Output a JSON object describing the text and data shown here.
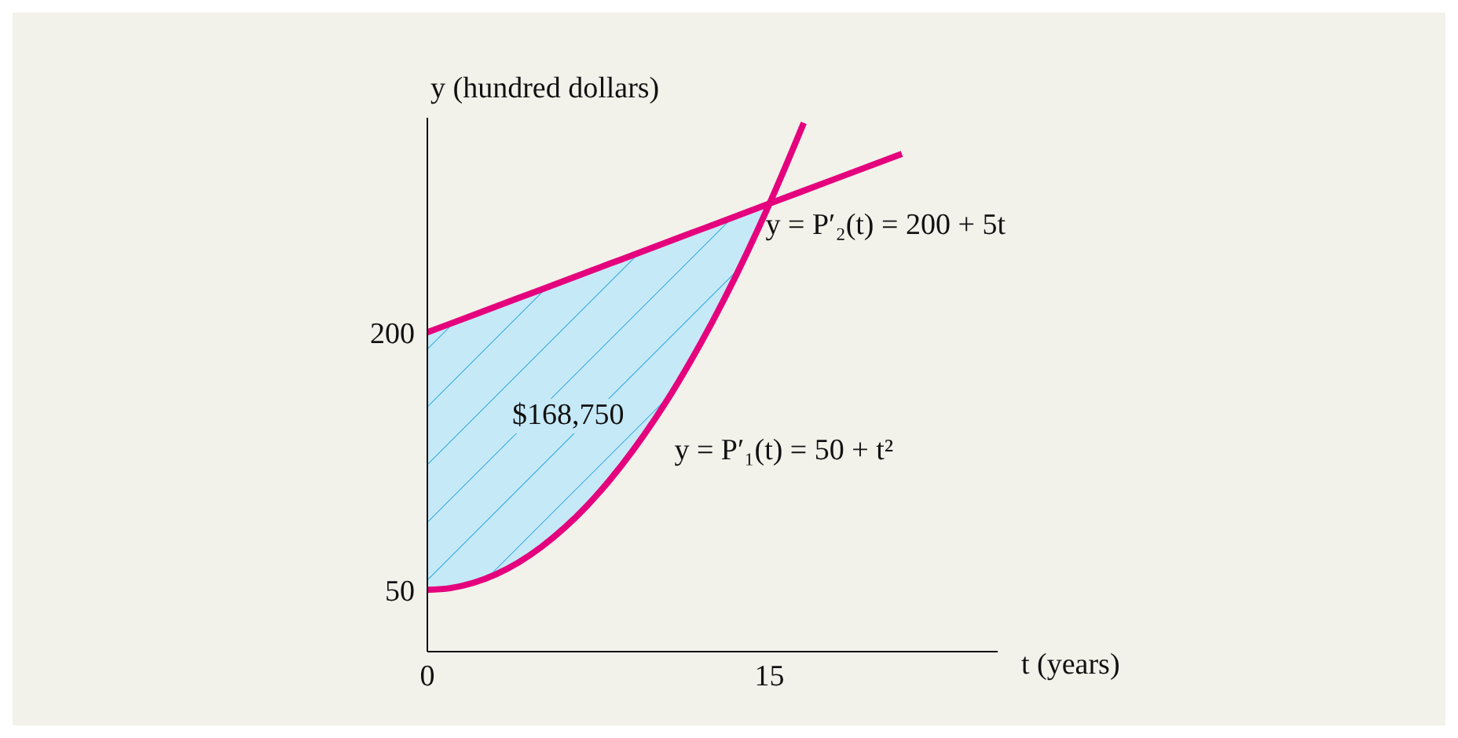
{
  "chart_data": {
    "type": "line",
    "xlabel": "t (years)",
    "ylabel": "y (hundred dollars)",
    "xlim": [
      0,
      25
    ],
    "ylim": [
      14,
      325
    ],
    "xticks": [
      0,
      15
    ],
    "yticks": [
      50,
      200
    ],
    "grid": false,
    "legend": false,
    "marker": "none",
    "line_style": "solid",
    "annotations": [
      "$168,750"
    ],
    "series": [
      {
        "name": "y = P′₂(t) = 200 + 5t",
        "color": "#e5007d",
        "x": [
          0,
          1,
          2,
          3,
          4,
          5,
          6,
          7,
          8,
          9,
          10,
          11,
          12,
          13,
          14,
          15,
          20.8
        ],
        "values": [
          200,
          205,
          210,
          215,
          220,
          225,
          230,
          235,
          240,
          245,
          250,
          255,
          260,
          265,
          270,
          275,
          304
        ],
        "lower": [
          50,
          51,
          54,
          59,
          66,
          75,
          86,
          99,
          114,
          131,
          150,
          171,
          194,
          219,
          246,
          275,
          null
        ],
        "upper": [
          200,
          205,
          210,
          215,
          220,
          225,
          230,
          235,
          240,
          245,
          250,
          255,
          260,
          265,
          270,
          275,
          null
        ]
      },
      {
        "name": "y = P′₁(t) = 50 + t²",
        "color": "#e5007d",
        "x": [
          0,
          1,
          2,
          3,
          4,
          5,
          6,
          7,
          8,
          9,
          10,
          11,
          12,
          13,
          14,
          15,
          16,
          16.5
        ],
        "values": [
          50,
          51,
          54,
          59,
          66,
          75,
          86,
          99,
          114,
          131,
          150,
          171,
          194,
          219,
          246,
          275,
          306,
          322
        ]
      }
    ]
  }
}
